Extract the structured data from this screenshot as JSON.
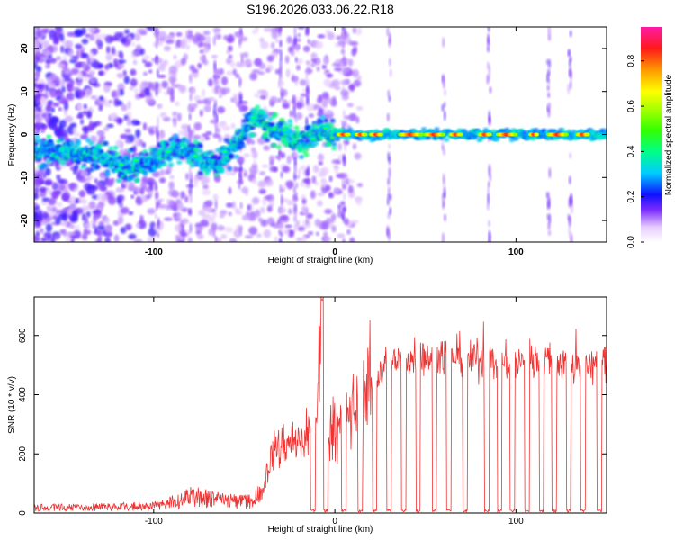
{
  "title": "S196.2026.033.06.22.R18",
  "chart_data": [
    {
      "type": "heatmap",
      "xlabel": "Height of straight line (km)",
      "ylabel": "Frequency (Hz)",
      "xlim": [
        -166,
        150
      ],
      "ylim": [
        -25,
        25
      ],
      "xticks": [
        -100,
        0,
        100
      ],
      "yticks": [
        -20,
        -10,
        0,
        10,
        20
      ],
      "ridge_x": [
        -166,
        -140,
        -130,
        -120,
        -110,
        -100,
        -95,
        -88,
        -80,
        -72,
        -66,
        -58,
        -52,
        -48,
        -44,
        -40,
        -36,
        -32,
        -28,
        -22,
        -18,
        -14,
        -10,
        -6,
        -3,
        0,
        10,
        20,
        40,
        60,
        80,
        100,
        120,
        150
      ],
      "ridge_freq": [
        -4,
        -4,
        -5,
        -7,
        -8,
        -6,
        -4,
        -3,
        -4,
        -6,
        -7,
        -4,
        -1,
        2,
        4,
        3,
        1,
        0.5,
        0.5,
        -1,
        -2,
        -1,
        0.5,
        1.5,
        0,
        0,
        0,
        0,
        0,
        0,
        0,
        0,
        0,
        0
      ],
      "colorbar": {
        "label": "Normalized spectral amplitude",
        "ticks": [
          "0.0",
          "0.2",
          "0.4",
          "0.6",
          "0.8"
        ],
        "range": [
          0,
          0.95
        ]
      }
    },
    {
      "type": "line",
      "xlabel": "Height of straight line (km)",
      "ylabel": "SNR (10 * v/v)",
      "xlim": [
        -166,
        150
      ],
      "ylim": [
        0,
        730
      ],
      "xticks": [
        -100,
        0,
        100
      ],
      "yticks": [
        0,
        200,
        400,
        600
      ],
      "color": "#ee3333",
      "envelope_x": [
        -166,
        -100,
        -90,
        -80,
        -70,
        -60,
        -50,
        -40,
        -35,
        -30,
        -25,
        -20,
        -15,
        -10,
        -7,
        -5,
        0,
        5,
        10,
        15,
        20,
        25,
        30,
        35,
        40,
        50,
        60,
        70,
        80,
        90,
        100,
        110,
        120,
        130,
        140,
        150
      ],
      "envelope_snr": [
        20,
        25,
        40,
        60,
        55,
        45,
        40,
        70,
        200,
        220,
        250,
        230,
        280,
        330,
        720,
        250,
        300,
        320,
        350,
        390,
        440,
        480,
        510,
        520,
        525,
        530,
        525,
        535,
        520,
        510,
        505,
        525,
        515,
        495,
        500,
        510
      ],
      "dropouts_x": [
        -12,
        -5,
        5,
        14,
        22,
        30,
        38,
        46,
        55,
        63,
        72,
        84,
        91,
        98,
        106,
        114,
        121,
        129,
        137,
        146
      ]
    }
  ]
}
